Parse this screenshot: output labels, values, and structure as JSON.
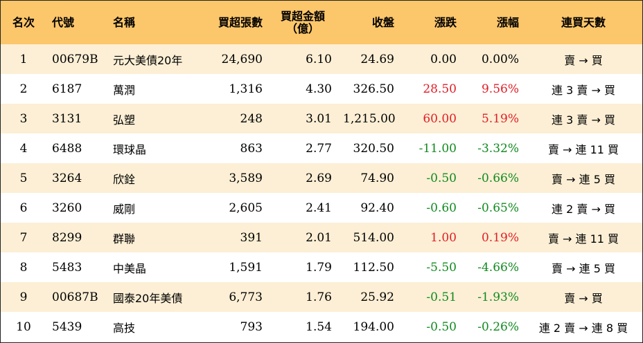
{
  "headers": {
    "rank": "名次",
    "code": "代號",
    "name": "名稱",
    "net_buy_lots": "買超張數",
    "net_buy_amount_line1": "買超金額",
    "net_buy_amount_line2": "（億）",
    "close": "收盤",
    "change": "漲跌",
    "change_pct": "漲幅",
    "consecutive_days": "連買天數"
  },
  "colors": {
    "header_bg": "#fcc66a",
    "row_alt_bg": "#fcefd5",
    "up": "#e21d25",
    "down": "#108a1f"
  },
  "rows": [
    {
      "rank": "1",
      "code": "00679B",
      "name": "元大美債20年",
      "lots": "24,690",
      "amount": "6.10",
      "close": "24.69",
      "change": "0.00",
      "pct": "0.00%",
      "days": "賣 → 買",
      "trend": "flat"
    },
    {
      "rank": "2",
      "code": "6187",
      "name": "萬潤",
      "lots": "1,316",
      "amount": "4.30",
      "close": "326.50",
      "change": "28.50",
      "pct": "9.56%",
      "days": "連 3 賣 → 買",
      "trend": "up"
    },
    {
      "rank": "3",
      "code": "3131",
      "name": "弘塑",
      "lots": "248",
      "amount": "3.01",
      "close": "1,215.00",
      "change": "60.00",
      "pct": "5.19%",
      "days": "連 3 賣 → 買",
      "trend": "up"
    },
    {
      "rank": "4",
      "code": "6488",
      "name": "環球晶",
      "lots": "863",
      "amount": "2.77",
      "close": "320.50",
      "change": "-11.00",
      "pct": "-3.32%",
      "days": "賣 → 連 11 買",
      "trend": "down"
    },
    {
      "rank": "5",
      "code": "3264",
      "name": "欣銓",
      "lots": "3,589",
      "amount": "2.69",
      "close": "74.90",
      "change": "-0.50",
      "pct": "-0.66%",
      "days": "賣 → 連 5 買",
      "trend": "down"
    },
    {
      "rank": "6",
      "code": "3260",
      "name": "威剛",
      "lots": "2,605",
      "amount": "2.41",
      "close": "92.40",
      "change": "-0.60",
      "pct": "-0.65%",
      "days": "連 2 賣 → 買",
      "trend": "down"
    },
    {
      "rank": "7",
      "code": "8299",
      "name": "群聯",
      "lots": "391",
      "amount": "2.01",
      "close": "514.00",
      "change": "1.00",
      "pct": "0.19%",
      "days": "賣 → 連 11 買",
      "trend": "up"
    },
    {
      "rank": "8",
      "code": "5483",
      "name": "中美晶",
      "lots": "1,591",
      "amount": "1.79",
      "close": "112.50",
      "change": "-5.50",
      "pct": "-4.66%",
      "days": "賣 → 連 5 買",
      "trend": "down"
    },
    {
      "rank": "9",
      "code": "00687B",
      "name": "國泰20年美債",
      "lots": "6,773",
      "amount": "1.76",
      "close": "25.92",
      "change": "-0.51",
      "pct": "-1.93%",
      "days": "賣 → 買",
      "trend": "down"
    },
    {
      "rank": "10",
      "code": "5439",
      "name": "高技",
      "lots": "793",
      "amount": "1.54",
      "close": "194.00",
      "change": "-0.50",
      "pct": "-0.26%",
      "days": "連 2 賣 → 連 8 買",
      "trend": "down"
    }
  ]
}
